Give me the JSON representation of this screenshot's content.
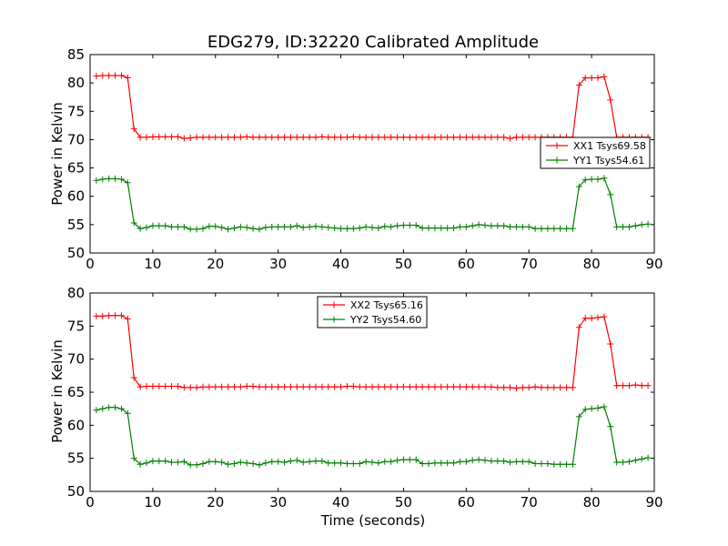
{
  "title": "EDG279, ID:32220 Calibrated Amplitude",
  "colors": {
    "series_red": "#ff0000",
    "series_green": "#008000"
  },
  "chart_data": [
    {
      "type": "line",
      "xlabel": "",
      "ylabel": "Power in Kelvin",
      "xlim": [
        0,
        90
      ],
      "ylim": [
        50,
        85
      ],
      "xticks": [
        0,
        10,
        20,
        30,
        40,
        50,
        60,
        70,
        80,
        90
      ],
      "yticks": [
        50,
        55,
        60,
        65,
        70,
        75,
        80,
        85
      ],
      "grid": false,
      "legend_position": "center-right",
      "x": [
        1,
        2,
        3,
        4,
        5,
        6,
        7,
        8,
        9,
        10,
        11,
        12,
        13,
        14,
        15,
        16,
        17,
        18,
        19,
        20,
        21,
        22,
        23,
        24,
        25,
        26,
        27,
        28,
        29,
        30,
        31,
        32,
        33,
        34,
        35,
        36,
        37,
        38,
        39,
        40,
        41,
        42,
        43,
        44,
        45,
        46,
        47,
        48,
        49,
        50,
        51,
        52,
        53,
        54,
        55,
        56,
        57,
        58,
        59,
        60,
        61,
        62,
        63,
        64,
        65,
        66,
        67,
        68,
        69,
        70,
        71,
        72,
        73,
        74,
        75,
        76,
        77,
        78,
        79,
        80,
        81,
        82,
        83,
        84,
        85,
        86,
        87,
        88,
        89
      ],
      "series": [
        {
          "name": "XX1 Tsys69.58",
          "color": "#ff0000",
          "values": [
            81.2,
            81.3,
            81.3,
            81.3,
            81.3,
            80.9,
            71.9,
            70.4,
            70.4,
            70.5,
            70.5,
            70.5,
            70.5,
            70.5,
            70.2,
            70.3,
            70.4,
            70.4,
            70.4,
            70.4,
            70.4,
            70.4,
            70.4,
            70.4,
            70.5,
            70.4,
            70.4,
            70.4,
            70.4,
            70.4,
            70.4,
            70.4,
            70.4,
            70.4,
            70.4,
            70.4,
            70.5,
            70.4,
            70.4,
            70.4,
            70.4,
            70.5,
            70.4,
            70.4,
            70.4,
            70.4,
            70.4,
            70.4,
            70.4,
            70.4,
            70.4,
            70.4,
            70.4,
            70.4,
            70.4,
            70.4,
            70.4,
            70.4,
            70.4,
            70.4,
            70.4,
            70.4,
            70.4,
            70.4,
            70.4,
            70.4,
            70.2,
            70.4,
            70.4,
            70.4,
            70.4,
            70.4,
            70.4,
            70.4,
            70.4,
            70.4,
            70.4,
            79.6,
            80.9,
            80.9,
            80.9,
            81.1,
            77.0,
            70.4,
            70.4,
            70.4,
            70.4,
            70.4,
            70.4
          ]
        },
        {
          "name": "YY1 Tsys54.61",
          "color": "#008000",
          "values": [
            62.8,
            63.0,
            63.1,
            63.1,
            63.0,
            62.4,
            55.3,
            54.3,
            54.5,
            54.8,
            54.8,
            54.8,
            54.6,
            54.6,
            54.6,
            54.2,
            54.2,
            54.3,
            54.7,
            54.7,
            54.5,
            54.2,
            54.4,
            54.6,
            54.5,
            54.3,
            54.2,
            54.5,
            54.6,
            54.6,
            54.6,
            54.6,
            54.8,
            54.5,
            54.6,
            54.7,
            54.6,
            54.5,
            54.4,
            54.3,
            54.3,
            54.3,
            54.4,
            54.6,
            54.5,
            54.4,
            54.7,
            54.6,
            54.8,
            54.9,
            54.9,
            54.9,
            54.4,
            54.4,
            54.4,
            54.4,
            54.4,
            54.4,
            54.6,
            54.6,
            54.8,
            55.0,
            54.9,
            54.8,
            54.8,
            54.8,
            54.6,
            54.6,
            54.6,
            54.6,
            54.3,
            54.3,
            54.3,
            54.3,
            54.3,
            54.3,
            54.3,
            61.7,
            62.9,
            63.0,
            63.0,
            63.2,
            60.3,
            54.6,
            54.6,
            54.6,
            54.8,
            55.0,
            55.1
          ]
        }
      ]
    },
    {
      "type": "line",
      "xlabel": "Time (seconds)",
      "ylabel": "Power in Kelvin",
      "xlim": [
        0,
        90
      ],
      "ylim": [
        50,
        80
      ],
      "xticks": [
        0,
        10,
        20,
        30,
        40,
        50,
        60,
        70,
        80,
        90
      ],
      "yticks": [
        50,
        55,
        60,
        65,
        70,
        75,
        80
      ],
      "grid": false,
      "legend_position": "upper-center",
      "x": [
        1,
        2,
        3,
        4,
        5,
        6,
        7,
        8,
        9,
        10,
        11,
        12,
        13,
        14,
        15,
        16,
        17,
        18,
        19,
        20,
        21,
        22,
        23,
        24,
        25,
        26,
        27,
        28,
        29,
        30,
        31,
        32,
        33,
        34,
        35,
        36,
        37,
        38,
        39,
        40,
        41,
        42,
        43,
        44,
        45,
        46,
        47,
        48,
        49,
        50,
        51,
        52,
        53,
        54,
        55,
        56,
        57,
        58,
        59,
        60,
        61,
        62,
        63,
        64,
        65,
        66,
        67,
        68,
        69,
        70,
        71,
        72,
        73,
        74,
        75,
        76,
        77,
        78,
        79,
        80,
        81,
        82,
        83,
        84,
        85,
        86,
        87,
        88,
        89
      ],
      "series": [
        {
          "name": "XX2 Tsys65.16",
          "color": "#ff0000",
          "values": [
            76.5,
            76.5,
            76.6,
            76.6,
            76.6,
            76.1,
            67.2,
            65.8,
            65.9,
            65.9,
            65.9,
            65.9,
            65.9,
            65.9,
            65.7,
            65.7,
            65.7,
            65.8,
            65.8,
            65.8,
            65.8,
            65.8,
            65.8,
            65.8,
            65.9,
            65.9,
            65.8,
            65.8,
            65.8,
            65.8,
            65.8,
            65.8,
            65.8,
            65.8,
            65.8,
            65.8,
            65.8,
            65.8,
            65.8,
            65.8,
            65.9,
            65.9,
            65.8,
            65.8,
            65.8,
            65.8,
            65.8,
            65.8,
            65.8,
            65.8,
            65.8,
            65.8,
            65.8,
            65.8,
            65.8,
            65.8,
            65.8,
            65.8,
            65.8,
            65.8,
            65.8,
            65.8,
            65.8,
            65.8,
            65.7,
            65.7,
            65.7,
            65.6,
            65.7,
            65.7,
            65.8,
            65.7,
            65.7,
            65.7,
            65.7,
            65.7,
            65.7,
            74.8,
            76.2,
            76.2,
            76.3,
            76.4,
            72.3,
            66.0,
            66.0,
            66.0,
            66.1,
            66.0,
            66.0
          ]
        },
        {
          "name": "YY2 Tsys54.60",
          "color": "#008000",
          "values": [
            62.3,
            62.5,
            62.7,
            62.7,
            62.5,
            61.8,
            55.0,
            54.1,
            54.3,
            54.6,
            54.6,
            54.6,
            54.4,
            54.4,
            54.5,
            54.0,
            54.0,
            54.2,
            54.5,
            54.5,
            54.4,
            54.1,
            54.2,
            54.4,
            54.3,
            54.2,
            54.0,
            54.3,
            54.5,
            54.5,
            54.4,
            54.6,
            54.7,
            54.4,
            54.5,
            54.6,
            54.6,
            54.3,
            54.3,
            54.3,
            54.2,
            54.2,
            54.2,
            54.5,
            54.4,
            54.3,
            54.5,
            54.5,
            54.7,
            54.8,
            54.8,
            54.8,
            54.2,
            54.2,
            54.3,
            54.3,
            54.3,
            54.3,
            54.5,
            54.5,
            54.7,
            54.8,
            54.7,
            54.6,
            54.6,
            54.6,
            54.4,
            54.5,
            54.5,
            54.5,
            54.2,
            54.2,
            54.2,
            54.1,
            54.1,
            54.1,
            54.1,
            61.3,
            62.4,
            62.5,
            62.6,
            62.8,
            59.8,
            54.4,
            54.4,
            54.5,
            54.7,
            54.9,
            55.1
          ]
        }
      ]
    }
  ]
}
